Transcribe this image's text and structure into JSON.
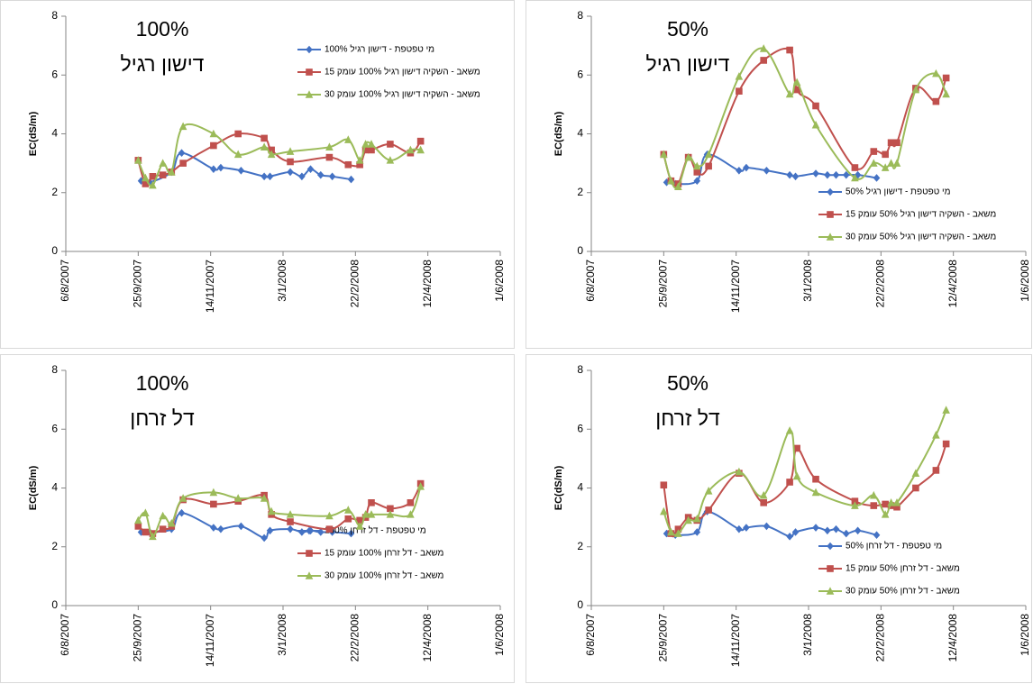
{
  "chart_data": [
    {
      "type": "line",
      "annotations": [
        "100%",
        "דישון רגיל"
      ],
      "ylabel": "EC(dS/m)",
      "legend": "top-right",
      "xlim": [
        "2007-08-06",
        "2008-06-01"
      ],
      "xticks": [
        {
          "value": "2007-08-06",
          "label": "6/8/2007"
        },
        {
          "value": "2007-09-25",
          "label": "25/9/2007"
        },
        {
          "value": "2007-11-14",
          "label": "14/11/2007"
        },
        {
          "value": "2008-01-03",
          "label": "3/1/2008"
        },
        {
          "value": "2008-02-22",
          "label": "22/2/2008"
        },
        {
          "value": "2008-04-12",
          "label": "12/4/2008"
        },
        {
          "value": "2008-06-01",
          "label": "1/6/2008"
        }
      ],
      "ylim": [
        0,
        8
      ],
      "yticks": [
        0,
        2,
        4,
        6,
        8
      ],
      "series": [
        {
          "name": "מי טפטפת - דישון רגיל 100%",
          "color": "#4472c4",
          "marker": "diamond",
          "x": [
            "2007-09-27",
            "2007-10-03",
            "2007-10-18",
            "2007-10-25",
            "2007-11-16",
            "2007-11-21",
            "2007-12-05",
            "2007-12-21",
            "2007-12-25",
            "2008-01-08",
            "2008-01-16",
            "2008-01-22",
            "2008-01-29",
            "2008-02-06",
            "2008-02-19"
          ],
          "values": [
            2.4,
            2.35,
            2.7,
            3.35,
            2.8,
            2.85,
            2.75,
            2.55,
            2.55,
            2.7,
            2.55,
            2.8,
            2.6,
            2.55,
            2.45
          ]
        },
        {
          "name": "משאב - השקיה דישון רגיל 100% עומק 15",
          "color": "#c0504d",
          "marker": "square",
          "x": [
            "2007-09-25",
            "2007-09-30",
            "2007-10-05",
            "2007-10-12",
            "2007-10-18",
            "2007-10-26",
            "2007-11-16",
            "2007-12-03",
            "2007-12-21",
            "2007-12-26",
            "2008-01-08",
            "2008-02-04",
            "2008-02-17",
            "2008-02-25",
            "2008-02-29",
            "2008-03-04",
            "2008-03-17",
            "2008-03-31",
            "2008-04-07"
          ],
          "values": [
            3.1,
            2.3,
            2.55,
            2.6,
            2.7,
            3.0,
            3.6,
            4.0,
            3.85,
            3.45,
            3.05,
            3.2,
            2.95,
            2.95,
            3.45,
            3.45,
            3.65,
            3.35,
            3.75
          ]
        },
        {
          "name": "משאב - השקיה דישון רגיל 100% עומק 30",
          "color": "#9bbb59",
          "marker": "triangle",
          "x": [
            "2007-09-25",
            "2007-09-30",
            "2007-10-05",
            "2007-10-12",
            "2007-10-18",
            "2007-10-26",
            "2007-11-16",
            "2007-12-03",
            "2007-12-21",
            "2007-12-26",
            "2008-01-08",
            "2008-02-04",
            "2008-02-17",
            "2008-02-25",
            "2008-02-29",
            "2008-03-04",
            "2008-03-17",
            "2008-03-31",
            "2008-04-07"
          ],
          "values": [
            3.1,
            2.5,
            2.25,
            3.0,
            2.7,
            4.25,
            4.0,
            3.3,
            3.55,
            3.3,
            3.4,
            3.55,
            3.8,
            3.1,
            3.65,
            3.65,
            3.1,
            3.45,
            3.45
          ]
        }
      ]
    },
    {
      "type": "line",
      "annotations": [
        "50%",
        "דישון רגיל"
      ],
      "ylabel": "EC(dS/m)",
      "legend": "bottom-right",
      "xlim": [
        "2007-08-06",
        "2008-06-01"
      ],
      "xticks": [
        {
          "value": "2007-08-06",
          "label": "6/8/2007"
        },
        {
          "value": "2007-09-25",
          "label": "25/9/2007"
        },
        {
          "value": "2007-11-14",
          "label": "14/11/2007"
        },
        {
          "value": "2008-01-03",
          "label": "3/1/2008"
        },
        {
          "value": "2008-02-22",
          "label": "22/2/2008"
        },
        {
          "value": "2008-04-12",
          "label": "12/4/2008"
        },
        {
          "value": "2008-06-01",
          "label": "1/6/2008"
        }
      ],
      "ylim": [
        0,
        8
      ],
      "yticks": [
        0,
        2,
        4,
        6,
        8
      ],
      "series": [
        {
          "name": "מי טפטפת - דישון רגיל 50%",
          "color": "#4472c4",
          "marker": "diamond",
          "x": [
            "2007-09-27",
            "2007-10-03",
            "2007-10-18",
            "2007-10-25",
            "2007-11-16",
            "2007-11-21",
            "2007-12-05",
            "2007-12-21",
            "2007-12-25",
            "2008-01-08",
            "2008-01-16",
            "2008-01-22",
            "2008-01-29",
            "2008-02-06",
            "2008-02-19"
          ],
          "values": [
            2.35,
            2.3,
            2.4,
            3.3,
            2.75,
            2.85,
            2.75,
            2.6,
            2.55,
            2.65,
            2.6,
            2.6,
            2.6,
            2.6,
            2.5
          ]
        },
        {
          "name": "משאב - השקיה דישון רגיל 50% עומק 15",
          "color": "#c0504d",
          "marker": "square",
          "x": [
            "2007-09-25",
            "2007-09-30",
            "2007-10-05",
            "2007-10-12",
            "2007-10-18",
            "2007-10-26",
            "2007-11-16",
            "2007-12-03",
            "2007-12-21",
            "2007-12-26",
            "2008-01-08",
            "2008-02-04",
            "2008-02-17",
            "2008-02-25",
            "2008-02-29",
            "2008-03-04",
            "2008-03-17",
            "2008-03-31",
            "2008-04-07"
          ],
          "values": [
            3.3,
            2.4,
            2.3,
            3.2,
            2.7,
            2.9,
            5.45,
            6.5,
            6.85,
            5.5,
            4.95,
            2.85,
            3.4,
            3.3,
            3.7,
            3.7,
            5.55,
            5.1,
            5.9
          ]
        },
        {
          "name": "משאב - השקיה דישון רגיל 50% עומק 30",
          "color": "#9bbb59",
          "marker": "triangle",
          "x": [
            "2007-09-25",
            "2007-09-30",
            "2007-10-05",
            "2007-10-12",
            "2007-10-18",
            "2007-10-26",
            "2007-11-16",
            "2007-12-03",
            "2007-12-21",
            "2007-12-26",
            "2008-01-08",
            "2008-02-04",
            "2008-02-17",
            "2008-02-25",
            "2008-02-29",
            "2008-03-04",
            "2008-03-17",
            "2008-03-31",
            "2008-04-07"
          ],
          "values": [
            3.3,
            2.4,
            2.2,
            3.2,
            2.9,
            3.3,
            5.95,
            6.9,
            5.35,
            5.75,
            4.3,
            2.5,
            3.0,
            2.85,
            3.0,
            3.0,
            5.5,
            6.05,
            5.35
          ]
        }
      ]
    },
    {
      "type": "line",
      "annotations": [
        "100%",
        "דל זרחן"
      ],
      "ylabel": "EC(dS/m)",
      "legend": "center-right",
      "xlim": [
        "2007-08-06",
        "2008-06-01"
      ],
      "xticks": [
        {
          "value": "2007-08-06",
          "label": "6/8/2007"
        },
        {
          "value": "2007-09-25",
          "label": "25/9/2007"
        },
        {
          "value": "2007-11-14",
          "label": "14/11/2007"
        },
        {
          "value": "2008-01-03",
          "label": "3/1/2008"
        },
        {
          "value": "2008-02-22",
          "label": "22/2/2008"
        },
        {
          "value": "2008-04-12",
          "label": "12/4/2008"
        },
        {
          "value": "2008-06-01",
          "label": "1/6/2008"
        }
      ],
      "ylim": [
        0,
        8
      ],
      "yticks": [
        0,
        2,
        4,
        6,
        8
      ],
      "series": [
        {
          "name": "מי טפטפת - דל זרחן 100%",
          "color": "#4472c4",
          "marker": "diamond",
          "x": [
            "2007-09-27",
            "2007-10-03",
            "2007-10-18",
            "2007-10-25",
            "2007-11-16",
            "2007-11-21",
            "2007-12-05",
            "2007-12-21",
            "2007-12-25",
            "2008-01-08",
            "2008-01-16",
            "2008-01-22",
            "2008-01-29",
            "2008-02-06",
            "2008-02-19"
          ],
          "values": [
            2.5,
            2.5,
            2.6,
            3.15,
            2.65,
            2.6,
            2.7,
            2.3,
            2.55,
            2.6,
            2.5,
            2.55,
            2.5,
            2.5,
            2.45
          ]
        },
        {
          "name": "משאב - דל זרחן 100% עומק 15",
          "color": "#c0504d",
          "marker": "square",
          "x": [
            "2007-09-25",
            "2007-09-30",
            "2007-10-05",
            "2007-10-12",
            "2007-10-18",
            "2007-10-26",
            "2007-11-16",
            "2007-12-03",
            "2007-12-21",
            "2007-12-26",
            "2008-01-08",
            "2008-02-04",
            "2008-02-17",
            "2008-02-25",
            "2008-02-29",
            "2008-03-04",
            "2008-03-17",
            "2008-03-31",
            "2008-04-07"
          ],
          "values": [
            2.7,
            2.5,
            2.45,
            2.6,
            2.7,
            3.6,
            3.45,
            3.55,
            3.75,
            3.1,
            2.85,
            2.6,
            2.95,
            2.9,
            3.0,
            3.5,
            3.3,
            3.5,
            4.15
          ]
        },
        {
          "name": "משאב - דל זרחן 100% עומק 30",
          "color": "#9bbb59",
          "marker": "triangle",
          "x": [
            "2007-09-25",
            "2007-09-30",
            "2007-10-05",
            "2007-10-12",
            "2007-10-18",
            "2007-10-26",
            "2007-11-16",
            "2007-12-03",
            "2007-12-21",
            "2007-12-26",
            "2008-01-08",
            "2008-02-04",
            "2008-02-17",
            "2008-02-25",
            "2008-02-29",
            "2008-03-04",
            "2008-03-17",
            "2008-03-31",
            "2008-04-07"
          ],
          "values": [
            2.9,
            3.15,
            2.35,
            3.05,
            2.8,
            3.65,
            3.85,
            3.65,
            3.65,
            3.2,
            3.1,
            3.05,
            3.25,
            2.7,
            3.1,
            3.1,
            3.1,
            3.1,
            4.05
          ]
        }
      ]
    },
    {
      "type": "line",
      "annotations": [
        "50%",
        "דל זרחן"
      ],
      "ylabel": "EC(dS/m)",
      "legend": "bottom-right",
      "xlim": [
        "2007-08-06",
        "2008-06-01"
      ],
      "xticks": [
        {
          "value": "2007-08-06",
          "label": "6/8/2007"
        },
        {
          "value": "2007-09-25",
          "label": "25/9/2007"
        },
        {
          "value": "2007-11-14",
          "label": "14/11/2007"
        },
        {
          "value": "2008-01-03",
          "label": "3/1/2008"
        },
        {
          "value": "2008-02-22",
          "label": "22/2/2008"
        },
        {
          "value": "2008-04-12",
          "label": "12/4/2008"
        },
        {
          "value": "2008-06-01",
          "label": "1/6/2008"
        }
      ],
      "ylim": [
        0,
        8
      ],
      "yticks": [
        0,
        2,
        4,
        6,
        8
      ],
      "series": [
        {
          "name": "מי טפטפת - דל זרחן 50%",
          "color": "#4472c4",
          "marker": "diamond",
          "x": [
            "2007-09-27",
            "2007-10-03",
            "2007-10-18",
            "2007-10-25",
            "2007-11-16",
            "2007-11-21",
            "2007-12-05",
            "2007-12-21",
            "2007-12-25",
            "2008-01-08",
            "2008-01-16",
            "2008-01-22",
            "2008-01-29",
            "2008-02-06",
            "2008-02-19"
          ],
          "values": [
            2.45,
            2.4,
            2.5,
            3.2,
            2.6,
            2.65,
            2.7,
            2.35,
            2.5,
            2.65,
            2.55,
            2.6,
            2.45,
            2.55,
            2.4
          ]
        },
        {
          "name": "משאב - דל זרחן 50% עומק 15",
          "color": "#c0504d",
          "marker": "square",
          "x": [
            "2007-09-25",
            "2007-09-30",
            "2007-10-05",
            "2007-10-12",
            "2007-10-18",
            "2007-10-26",
            "2007-11-16",
            "2007-12-03",
            "2007-12-21",
            "2007-12-26",
            "2008-01-08",
            "2008-02-04",
            "2008-02-17",
            "2008-02-25",
            "2008-02-29",
            "2008-03-04",
            "2008-03-17",
            "2008-03-31",
            "2008-04-07"
          ],
          "values": [
            4.1,
            2.45,
            2.6,
            3.0,
            2.9,
            3.25,
            4.5,
            3.5,
            4.2,
            5.35,
            4.3,
            3.55,
            3.4,
            3.45,
            3.4,
            3.35,
            4.0,
            4.6,
            5.5
          ]
        },
        {
          "name": "משאב - דל זרחן 50% עומק 30",
          "color": "#9bbb59",
          "marker": "triangle",
          "x": [
            "2007-09-25",
            "2007-09-30",
            "2007-10-05",
            "2007-10-12",
            "2007-10-18",
            "2007-10-26",
            "2007-11-16",
            "2007-12-03",
            "2007-12-21",
            "2007-12-26",
            "2008-01-08",
            "2008-02-04",
            "2008-02-17",
            "2008-02-25",
            "2008-02-29",
            "2008-03-04",
            "2008-03-17",
            "2008-03-31",
            "2008-04-07"
          ],
          "values": [
            3.2,
            2.5,
            2.45,
            2.9,
            2.95,
            3.9,
            4.55,
            3.75,
            5.95,
            4.4,
            3.85,
            3.4,
            3.75,
            3.1,
            3.5,
            3.5,
            4.5,
            5.8,
            6.65
          ]
        }
      ]
    }
  ]
}
